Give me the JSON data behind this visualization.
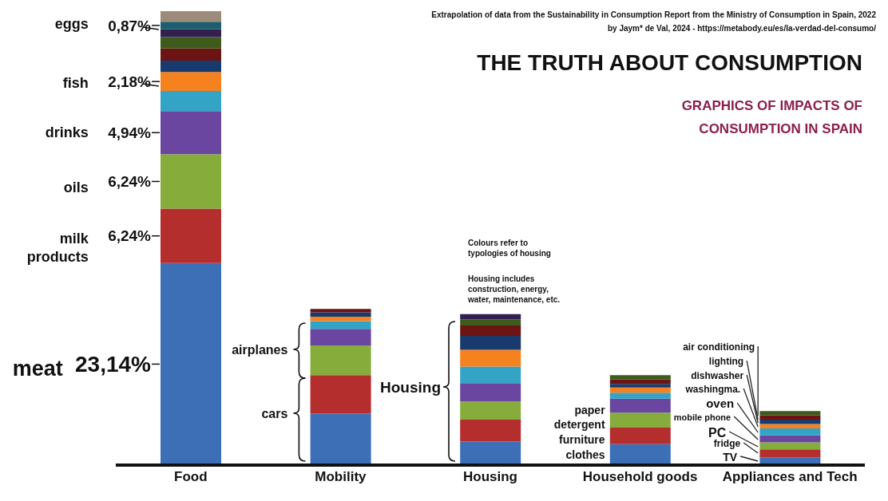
{
  "chart_data": {
    "type": "bar",
    "stacked": true,
    "title": "THE TRUTH ABOUT CONSUMPTION",
    "subtitle": "GRAPHICS OF IMPACTS OF CONSUMPTION IN SPAIN",
    "categories": [
      "Food",
      "Mobility",
      "Housing",
      "Household goods",
      "Appliances and Tech"
    ],
    "series": [
      {
        "color": "#3d6fb6",
        "values": [
          23.14,
          5.9,
          2.7,
          2.4,
          0.9
        ],
        "value_labels": [
          "23,14%",
          null,
          null,
          null,
          null
        ]
      },
      {
        "color": "#b52e2e",
        "values": [
          6.24,
          4.4,
          2.5,
          1.9,
          0.9
        ],
        "value_labels": [
          "6,24%",
          null,
          null,
          null,
          null
        ]
      },
      {
        "color": "#86ac3c",
        "values": [
          6.24,
          3.4,
          2.1,
          1.7,
          0.8
        ],
        "value_labels": [
          "6,24%",
          null,
          null,
          null,
          null
        ]
      },
      {
        "color": "#6a46a0",
        "values": [
          4.94,
          1.9,
          2.1,
          1.6,
          0.8
        ],
        "value_labels": [
          "4,94%",
          null,
          null,
          null,
          null
        ]
      },
      {
        "color": "#33a4c6",
        "values": [
          2.3,
          0.9,
          1.9,
          0.7,
          0.8
        ]
      },
      {
        "color": "#f5821f",
        "values": [
          2.18,
          0.5,
          1.9,
          0.6,
          0.5
        ],
        "value_labels": [
          "2,18%",
          null,
          null,
          null,
          null
        ]
      },
      {
        "color": "#183a6c",
        "values": [
          1.3,
          0.5,
          1.6,
          0.4,
          0.5
        ]
      },
      {
        "color": "#6c1414",
        "values": [
          1.4,
          0.4,
          1.2,
          0.5,
          0.5
        ]
      },
      {
        "color": "#3e5b1b",
        "values": [
          1.3,
          null,
          0.7,
          0.5,
          0.5
        ]
      },
      {
        "color": "#32204f",
        "values": [
          0.9,
          null,
          0.6,
          null,
          null
        ]
      },
      {
        "color": "#1d5e6e",
        "values": [
          0.87,
          null,
          null,
          null,
          null
        ],
        "value_labels": [
          "0,87%",
          null,
          null,
          null,
          null
        ]
      },
      {
        "color": "#9c8a7a",
        "values": [
          1.2,
          null,
          null,
          null,
          null
        ]
      }
    ],
    "annotations": [
      "Extrapolation of data from the Sustainability in Consumption Report from the Ministry of Consumption in Spain, 2022",
      "by Jaym* de Val, 2024 - https://metabody.eu/es/la-verdad-del-consumo/",
      "Colours refer to typologies of housing",
      "Housing includes construction, energy, water, maintenance, etc.",
      "meat",
      "milk products",
      "oils",
      "drinks",
      "fish",
      "eggs",
      "airplanes",
      "cars",
      "Housing",
      "paper",
      "detergent",
      "furniture",
      "clothes",
      "air conditioning",
      "lighting",
      "dishwasher",
      "washingma.",
      "oven",
      "mobile phone",
      "PC",
      "fridge",
      "TV"
    ]
  }
}
